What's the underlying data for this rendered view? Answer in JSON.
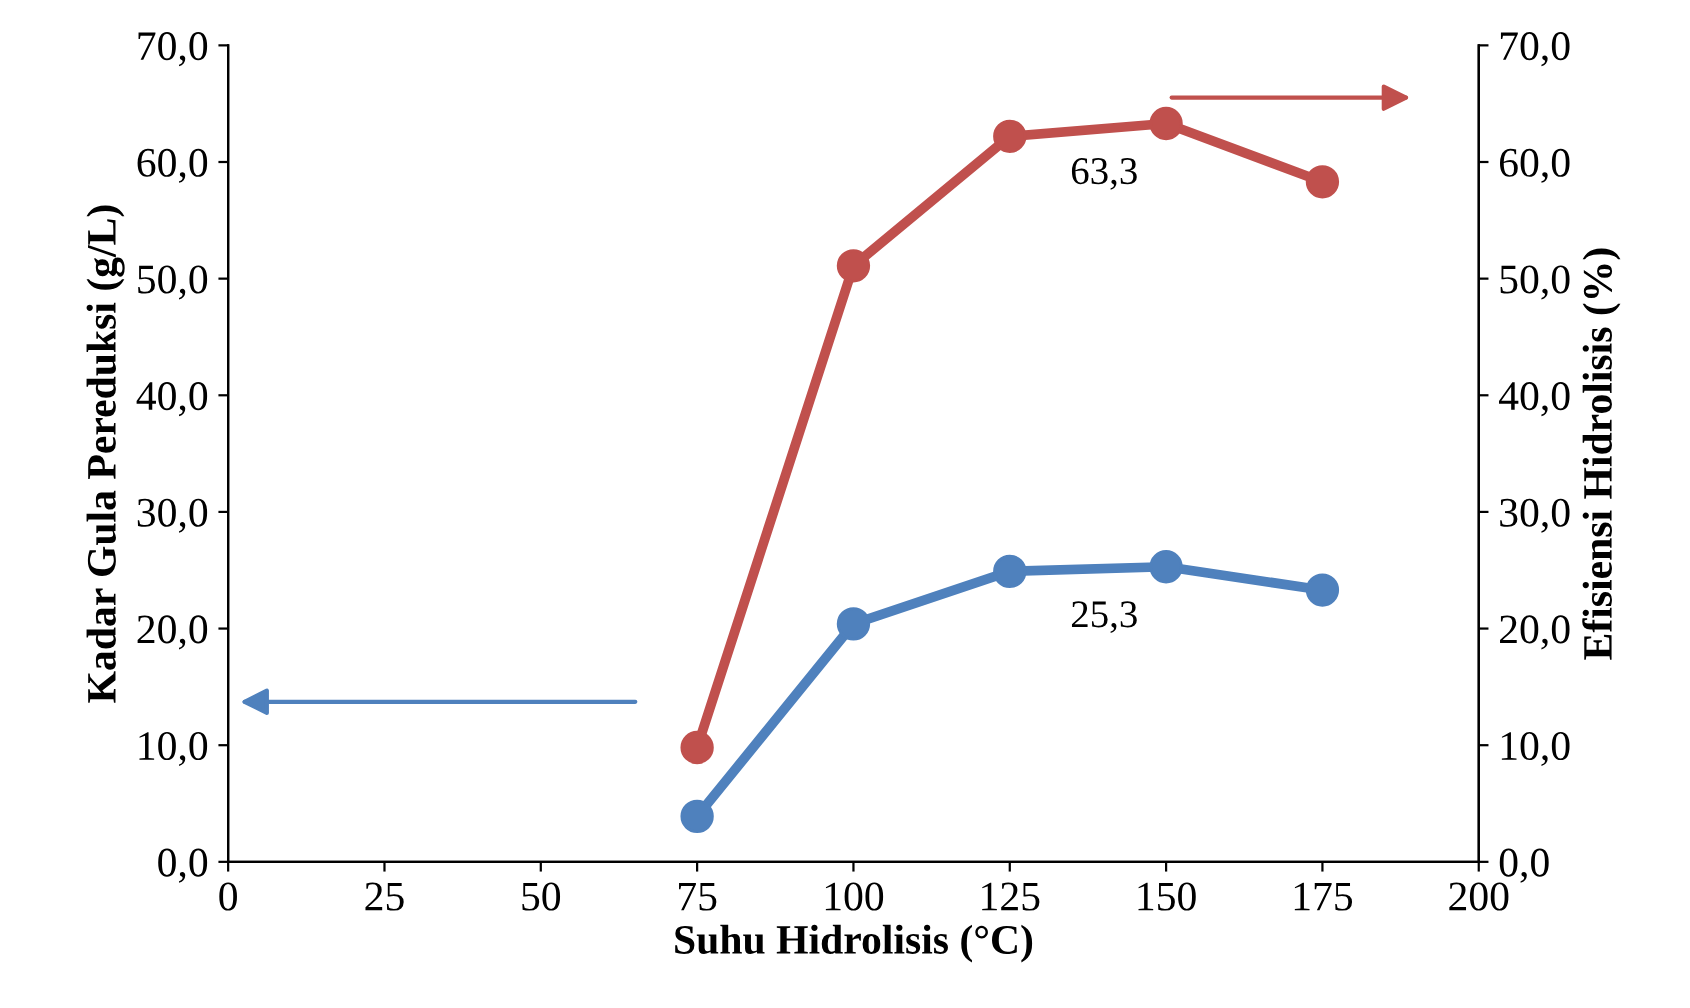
{
  "chart_data": {
    "type": "line",
    "xlabel": "Suhu Hidrolisis (°C)",
    "ylabel": "Kadar Gula Pereduksi (g/L)",
    "y2label": "Efisiensi Hidrolisis (%)",
    "x": [
      75,
      100,
      125,
      150,
      175
    ],
    "series": [
      {
        "color": "#4f81bd",
        "values": [
          3.9,
          20.4,
          24.9,
          25.3,
          23.3
        ],
        "value_labels": [
          null,
          null,
          null,
          "25,3",
          null
        ]
      },
      {
        "color": "#c0504d",
        "values": [
          9.8,
          51.1,
          62.2,
          63.3,
          58.3
        ],
        "axis": "y2",
        "value_labels": [
          null,
          null,
          null,
          "63,3",
          null
        ]
      }
    ],
    "xlim": [
      0,
      200
    ],
    "xticks": [
      0,
      25,
      50,
      75,
      100,
      125,
      150,
      175,
      200
    ],
    "ylim": [
      0,
      70
    ],
    "yticks": [
      {
        "value": 0,
        "label": "0,0"
      },
      {
        "value": 10,
        "label": "10,0"
      },
      {
        "value": 20,
        "label": "20,0"
      },
      {
        "value": 30,
        "label": "30,0"
      },
      {
        "value": 40,
        "label": "40,0"
      },
      {
        "value": 50,
        "label": "50,0"
      },
      {
        "value": 60,
        "label": "60,0"
      },
      {
        "value": 70,
        "label": "70,0"
      }
    ],
    "y2lim": [
      0,
      70
    ],
    "y2ticks": [
      {
        "value": 0,
        "label": "0,0"
      },
      {
        "value": 10,
        "label": "10,0"
      },
      {
        "value": 20,
        "label": "20,0"
      },
      {
        "value": 30,
        "label": "30,0"
      },
      {
        "value": 40,
        "label": "40,0"
      },
      {
        "value": 50,
        "label": "50,0"
      },
      {
        "value": 60,
        "label": "60,0"
      },
      {
        "value": 70,
        "label": "70,0"
      }
    ],
    "marker": "circle",
    "line_style": "solid",
    "grid": false,
    "legend": false
  }
}
